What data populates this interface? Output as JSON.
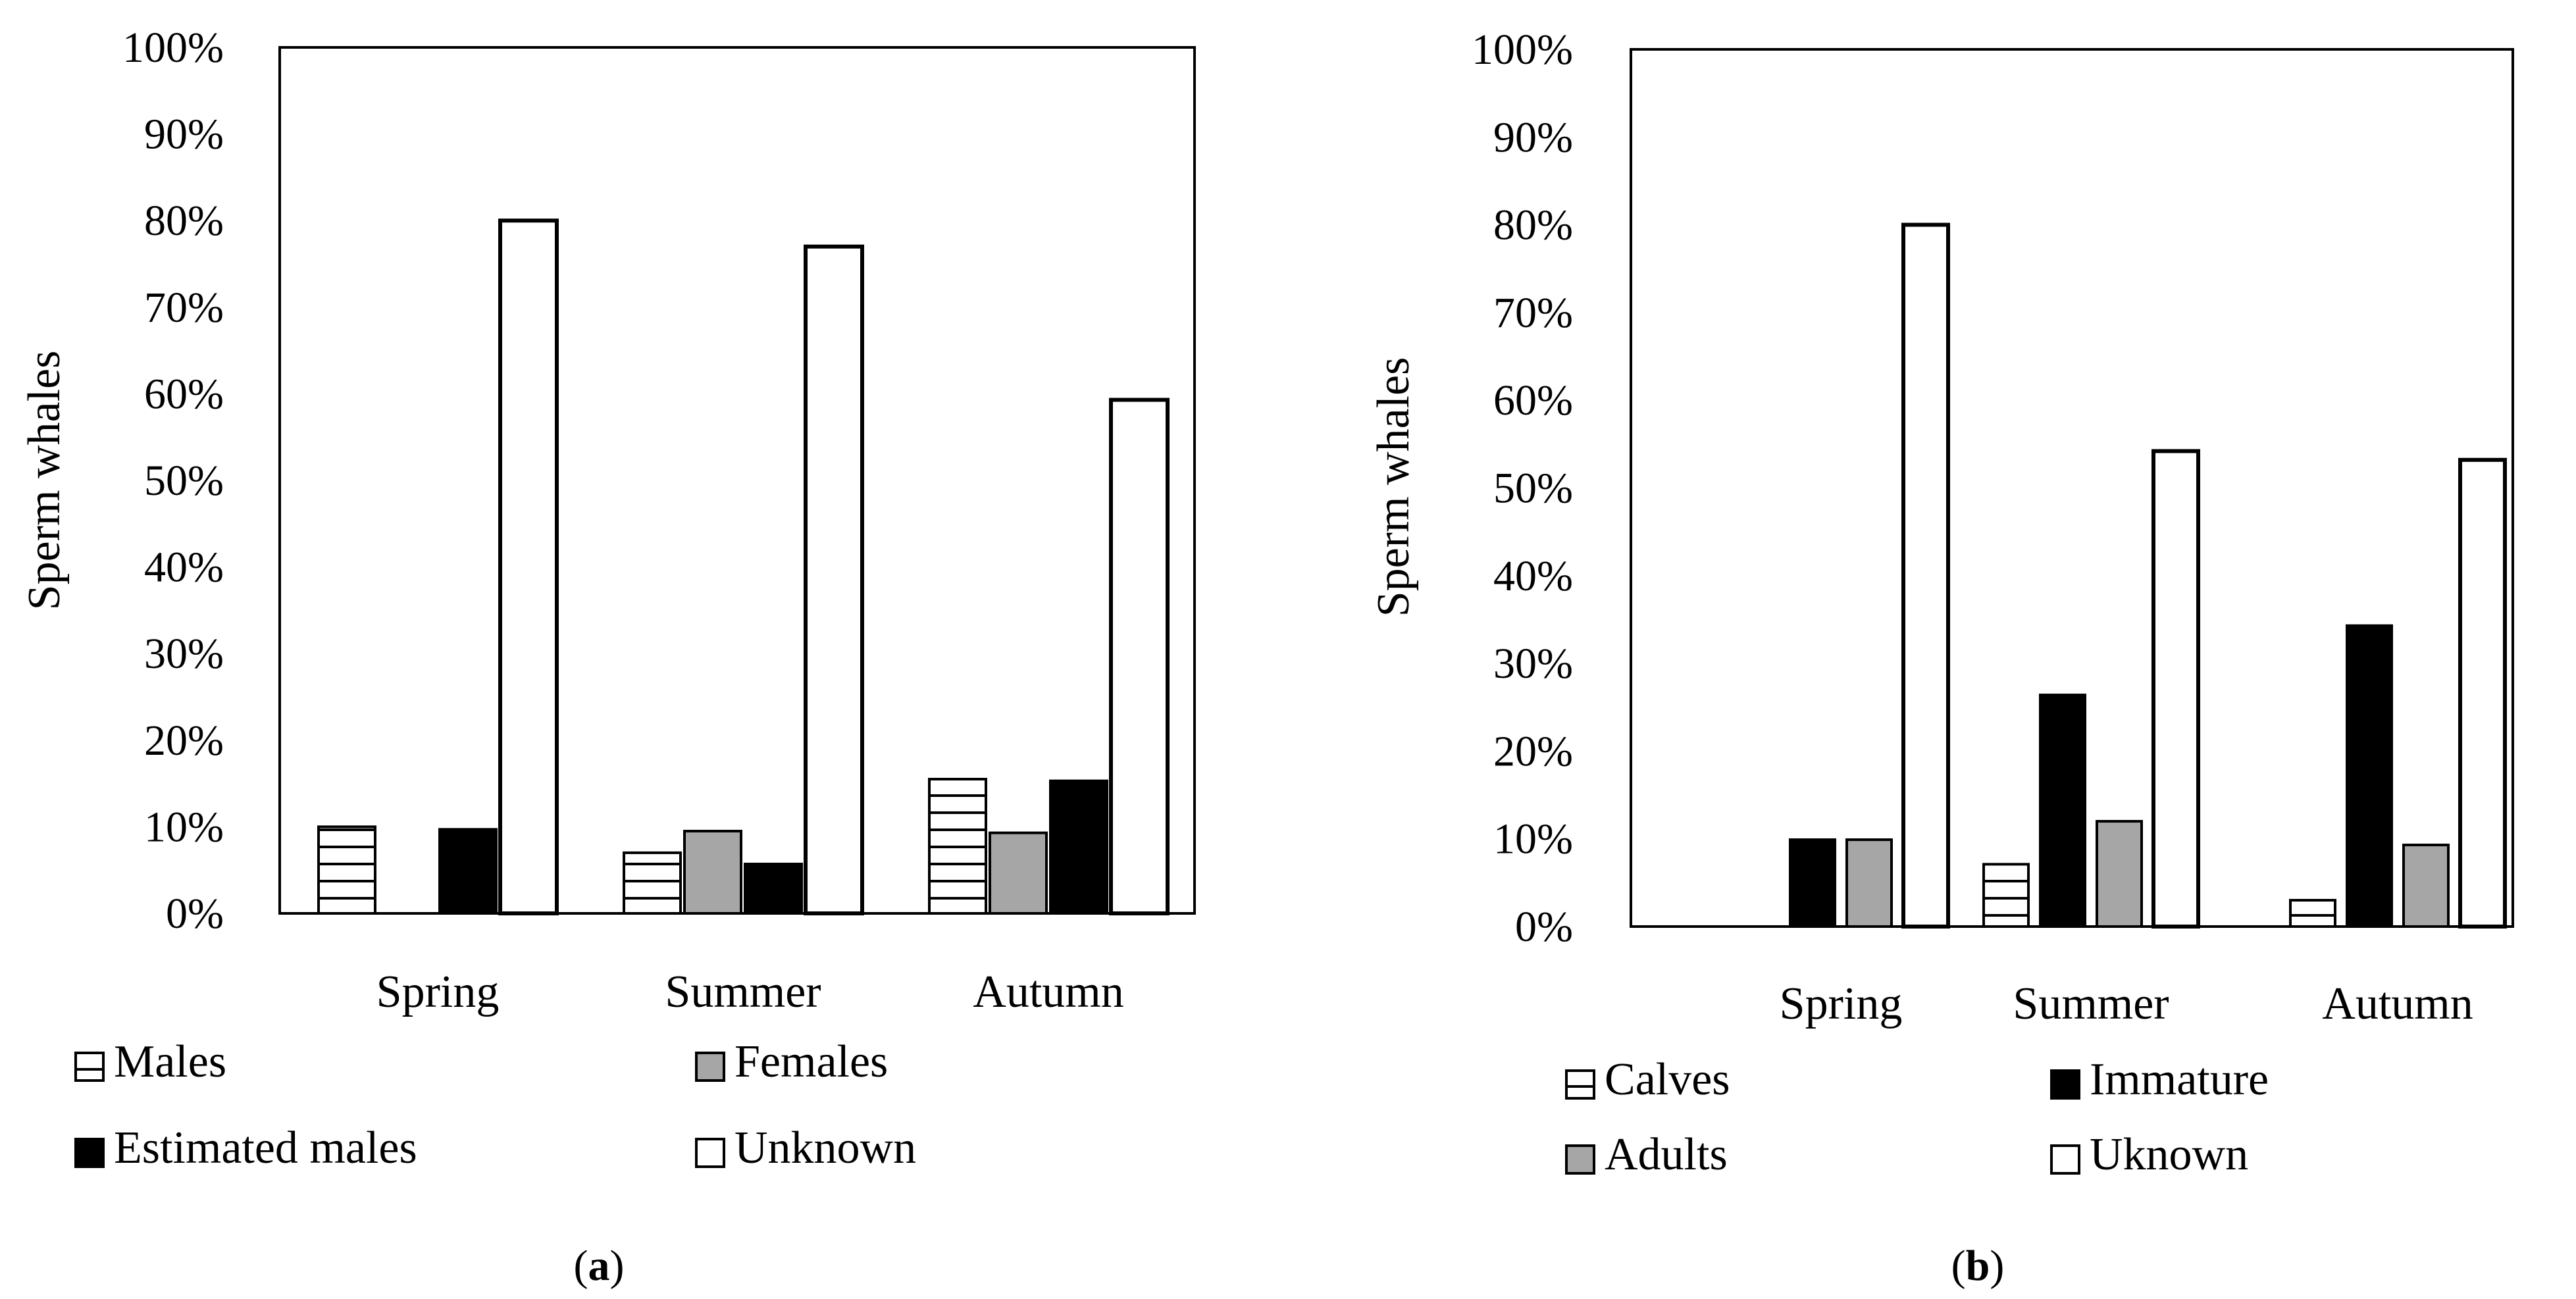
{
  "colors": {
    "background": "#ffffff",
    "stroke": "#000000",
    "gray_fill": "#a6a6a6",
    "black_fill": "#000000",
    "white_fill": "#ffffff"
  },
  "chart_data": [
    {
      "type": "bar",
      "panel_label_paren_open": "(",
      "panel_label": "a",
      "panel_label_paren_close": ")",
      "ylabel": "Sperm whales",
      "xlabel": "",
      "ylim": [
        0,
        100
      ],
      "ytick_values": [
        0,
        10,
        20,
        30,
        40,
        50,
        60,
        70,
        80,
        90,
        100
      ],
      "ytick_labels": [
        "0%",
        "10%",
        "20%",
        "30%",
        "40%",
        "50%",
        "60%",
        "70%",
        "80%",
        "90%",
        "100%"
      ],
      "categories": [
        "Spring",
        "Summer",
        "Autumn"
      ],
      "grid": false,
      "legend_position": "bottom",
      "series": [
        {
          "name": "Males",
          "pattern": "stripes",
          "values": [
            10,
            7,
            15.5
          ]
        },
        {
          "name": "Females",
          "pattern": "gray",
          "values": [
            0,
            9.5,
            9.3
          ]
        },
        {
          "name": "Estimated males",
          "pattern": "black",
          "values": [
            9.7,
            5.7,
            15.3
          ]
        },
        {
          "name": "Unknown",
          "pattern": "white",
          "values": [
            80,
            77,
            59.3
          ]
        }
      ]
    },
    {
      "type": "bar",
      "panel_label_paren_open": "(",
      "panel_label": "b",
      "panel_label_paren_close": ")",
      "ylabel": "Sperm whales",
      "xlabel": "",
      "ylim": [
        0,
        100
      ],
      "ytick_values": [
        0,
        10,
        20,
        30,
        40,
        50,
        60,
        70,
        80,
        90,
        100
      ],
      "ytick_labels": [
        "0%",
        "10%",
        "20%",
        "30%",
        "40%",
        "50%",
        "60%",
        "70%",
        "80%",
        "90%",
        "100%"
      ],
      "categories": [
        "Spring",
        "Summer",
        "Autumn"
      ],
      "grid": false,
      "legend_position": "bottom",
      "series": [
        {
          "name": "Calves",
          "pattern": "stripes",
          "values": [
            0,
            7.1,
            3
          ]
        },
        {
          "name": "Immature",
          "pattern": "black",
          "values": [
            9.9,
            26.4,
            34.3
          ]
        },
        {
          "name": "Adults",
          "pattern": "gray",
          "values": [
            9.9,
            12,
            9.3
          ]
        },
        {
          "name": "Uknown",
          "pattern": "white",
          "values": [
            80,
            54.2,
            53.2
          ]
        }
      ]
    }
  ]
}
